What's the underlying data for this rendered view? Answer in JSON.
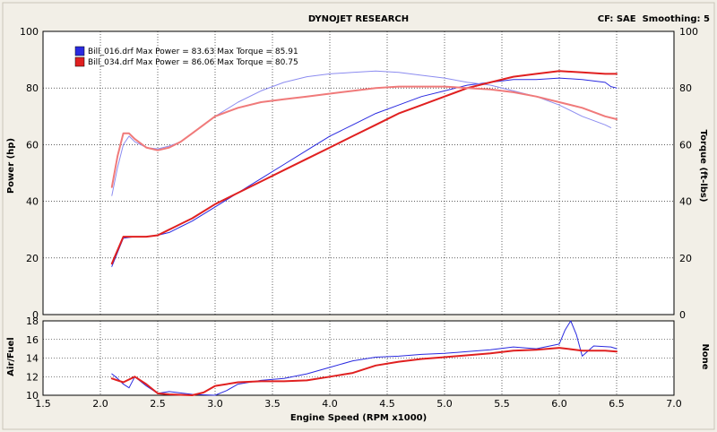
{
  "header": {
    "title": "DYNOJET RESEARCH",
    "right_info": "CF: SAE  Smoothing: 5"
  },
  "legend": [
    {
      "file": "Bill_016.drf",
      "text": "Bill_016.drf Max Power = 83.63 Max Torque = 85.91",
      "color": "#2a2ae0"
    },
    {
      "file": "Bill_034.drf",
      "text": "Bill_034.drf Max Power = 86.06 Max Torque = 80.75",
      "color": "#e02020"
    }
  ],
  "axes": {
    "x_label": "Engine Speed (RPM x1000)",
    "y_left_label": "Power (hp)",
    "y_right_label": "Torque (ft-lbs)",
    "y_lower_left_label": "Air/Fuel",
    "y_lower_right_label": "None"
  },
  "chart_data": [
    {
      "type": "line",
      "title": "",
      "xlabel": "Engine Speed (RPM x1000)",
      "ylabel": "Power (hp)",
      "y2label": "Torque (ft-lbs)",
      "xlim": [
        1.5,
        7.0
      ],
      "ylim": [
        0,
        100
      ],
      "y2lim": [
        0,
        100
      ],
      "x_ticks": [
        "1.5",
        "2.0",
        "2.5",
        "3.0",
        "3.5",
        "4.0",
        "4.5",
        "5.0",
        "5.5",
        "6.0",
        "6.5",
        "7.0"
      ],
      "y_ticks": [
        "0",
        "20",
        "40",
        "60",
        "80",
        "100"
      ],
      "y2_ticks": [
        "0",
        "20",
        "40",
        "60",
        "80",
        "100"
      ],
      "grid": true,
      "legend_position": "top-left",
      "series": [
        {
          "name": "Bill_016.drf",
          "measure": "power",
          "color": "#2a2ae0",
          "width": 1,
          "x": [
            2.1,
            2.2,
            2.3,
            2.4,
            2.5,
            2.6,
            2.7,
            2.8,
            3.0,
            3.2,
            3.4,
            3.6,
            3.8,
            4.0,
            4.2,
            4.4,
            4.6,
            4.8,
            5.0,
            5.2,
            5.4,
            5.6,
            5.8,
            6.0,
            6.2,
            6.4,
            6.45,
            6.5
          ],
          "y": [
            17,
            27,
            27.5,
            27.5,
            28,
            29,
            31,
            33,
            38,
            43,
            48,
            53,
            58,
            63,
            67,
            71,
            74,
            77,
            79,
            81,
            82,
            83,
            83,
            83.5,
            83,
            82,
            80.5,
            80
          ]
        },
        {
          "name": "Bill_016.drf",
          "measure": "torque",
          "color": "#8c8cf0",
          "width": 1,
          "x": [
            2.1,
            2.15,
            2.2,
            2.25,
            2.3,
            2.4,
            2.5,
            2.6,
            2.7,
            2.8,
            3.0,
            3.2,
            3.4,
            3.6,
            3.8,
            4.0,
            4.2,
            4.4,
            4.6,
            4.8,
            5.0,
            5.2,
            5.4,
            5.6,
            5.8,
            6.0,
            6.2,
            6.4,
            6.45
          ],
          "y": [
            42,
            52,
            60,
            63,
            61,
            59,
            58.5,
            59.5,
            61,
            64,
            70,
            75,
            79,
            82,
            84,
            85,
            85.5,
            86,
            85.5,
            84.5,
            83.5,
            82,
            81,
            79,
            77,
            74,
            70,
            67,
            66
          ]
        },
        {
          "name": "Bill_034.drf",
          "measure": "power",
          "color": "#e02020",
          "width": 2,
          "x": [
            2.1,
            2.2,
            2.3,
            2.4,
            2.5,
            2.6,
            2.7,
            2.8,
            3.0,
            3.2,
            3.4,
            3.6,
            3.8,
            4.0,
            4.2,
            4.4,
            4.6,
            4.8,
            5.0,
            5.2,
            5.4,
            5.6,
            5.8,
            6.0,
            6.2,
            6.4,
            6.5
          ],
          "y": [
            18,
            27.5,
            27.5,
            27.5,
            28,
            30,
            32,
            34,
            39,
            43,
            47,
            51,
            55,
            59,
            63,
            67,
            71,
            74,
            77,
            80,
            82,
            84,
            85,
            86,
            85.5,
            85,
            85
          ]
        },
        {
          "name": "Bill_034.drf",
          "measure": "torque",
          "color": "#f07a7a",
          "width": 2,
          "x": [
            2.1,
            2.15,
            2.2,
            2.25,
            2.3,
            2.4,
            2.5,
            2.6,
            2.7,
            2.8,
            3.0,
            3.2,
            3.4,
            3.6,
            3.8,
            4.0,
            4.2,
            4.4,
            4.6,
            4.8,
            5.0,
            5.2,
            5.4,
            5.6,
            5.8,
            6.0,
            6.2,
            6.4,
            6.5
          ],
          "y": [
            45,
            56,
            64,
            64,
            62,
            59,
            58,
            59,
            61,
            64,
            70,
            73,
            75,
            76,
            77,
            78,
            79,
            80,
            80.5,
            80.5,
            80.5,
            80,
            79.5,
            78.5,
            77,
            75,
            73,
            70,
            69
          ]
        }
      ]
    },
    {
      "type": "line",
      "title": "",
      "xlabel": "Engine Speed (RPM x1000)",
      "ylabel": "Air/Fuel",
      "y2label": "None",
      "xlim": [
        1.5,
        7.0
      ],
      "ylim": [
        10,
        18
      ],
      "y_ticks": [
        "10",
        "12",
        "14",
        "16",
        "18"
      ],
      "grid": true,
      "series": [
        {
          "name": "Bill_016.drf",
          "measure": "air_fuel",
          "color": "#2a2ae0",
          "width": 1,
          "x": [
            2.1,
            2.15,
            2.2,
            2.25,
            2.3,
            2.4,
            2.5,
            2.6,
            2.8,
            3.0,
            3.1,
            3.2,
            3.4,
            3.6,
            3.8,
            4.0,
            4.2,
            4.4,
            4.6,
            4.8,
            5.0,
            5.2,
            5.4,
            5.6,
            5.8,
            6.0,
            6.05,
            6.1,
            6.15,
            6.2,
            6.3,
            6.45,
            6.5
          ],
          "y": [
            12.3,
            11.8,
            11.2,
            10.8,
            12.0,
            11.0,
            10.2,
            10.4,
            10.1,
            10.0,
            10.5,
            11.2,
            11.6,
            11.8,
            12.3,
            13.0,
            13.7,
            14.1,
            14.2,
            14.4,
            14.5,
            14.7,
            14.9,
            15.2,
            15.0,
            15.5,
            17.0,
            18.0,
            16.5,
            14.2,
            15.3,
            15.2,
            15.0
          ]
        },
        {
          "name": "Bill_034.drf",
          "measure": "air_fuel",
          "color": "#e02020",
          "width": 2,
          "x": [
            2.1,
            2.2,
            2.3,
            2.4,
            2.5,
            2.6,
            2.8,
            2.9,
            3.0,
            3.1,
            3.2,
            3.4,
            3.6,
            3.8,
            4.0,
            4.2,
            4.4,
            4.6,
            4.8,
            5.0,
            5.2,
            5.4,
            5.6,
            5.8,
            6.0,
            6.2,
            6.4,
            6.5
          ],
          "y": [
            11.8,
            11.4,
            12.0,
            11.2,
            10.2,
            10.1,
            10.0,
            10.3,
            11.0,
            11.2,
            11.4,
            11.5,
            11.5,
            11.6,
            12.0,
            12.4,
            13.2,
            13.6,
            13.9,
            14.1,
            14.3,
            14.5,
            14.8,
            14.9,
            15.1,
            14.8,
            14.8,
            14.7
          ]
        }
      ]
    }
  ]
}
